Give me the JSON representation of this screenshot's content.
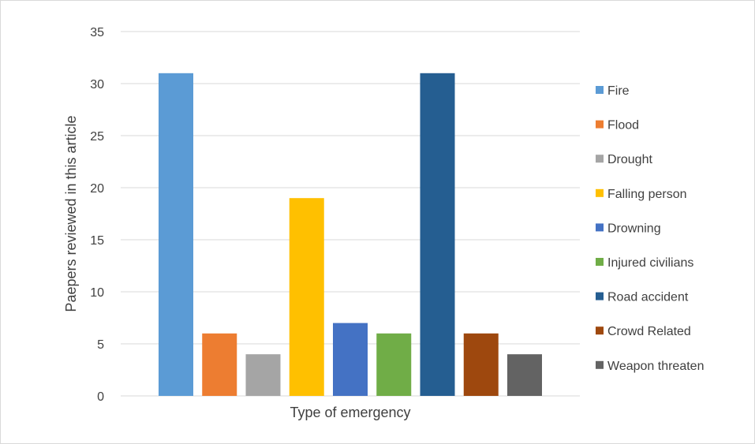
{
  "chart_data": {
    "type": "bar",
    "title": "",
    "xlabel": "Type of emergency",
    "ylabel": "Paepers reviewed in this article",
    "ylim": [
      0,
      35
    ],
    "ytick_step": 5,
    "yticks": [
      "0",
      "5",
      "10",
      "15",
      "20",
      "25",
      "30",
      "35"
    ],
    "grid": true,
    "legend_position": "right",
    "series": [
      {
        "name": "Fire",
        "value": 31,
        "color": "#5B9BD5"
      },
      {
        "name": "Flood",
        "value": 6,
        "color": "#ED7D31"
      },
      {
        "name": "Drought",
        "value": 4,
        "color": "#A5A5A5"
      },
      {
        "name": "Falling person",
        "value": 19,
        "color": "#FFC000"
      },
      {
        "name": "Drowning",
        "value": 7,
        "color": "#4472C4"
      },
      {
        "name": "Injured civilians",
        "value": 6,
        "color": "#70AD47"
      },
      {
        "name": "Road accident",
        "value": 31,
        "color": "#255E91"
      },
      {
        "name": "Crowd Related",
        "value": 6,
        "color": "#9E480E"
      },
      {
        "name": "Weapon threaten",
        "value": 4,
        "color": "#636363"
      }
    ]
  }
}
